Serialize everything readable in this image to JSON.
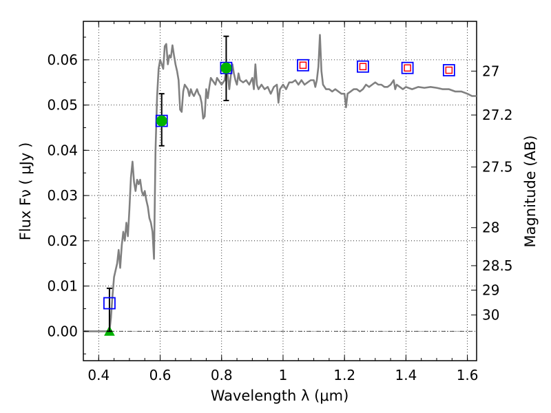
{
  "chart_data": {
    "type": "line",
    "xlabel": "Wavelength  λ (μm)",
    "ylabel": "Flux  Fν  ( μJy )",
    "y2label": "Magnitude (AB)",
    "xlim": [
      0.35,
      1.63
    ],
    "ylim": [
      -0.0065,
      0.0685
    ],
    "grid": true,
    "x_ticks": [
      0.4,
      0.6,
      0.8,
      1.0,
      1.2,
      1.4,
      1.6
    ],
    "x_tick_labels": [
      "0.4",
      "0.6",
      "0.8",
      "1",
      "1.2",
      "1.4",
      "1.6"
    ],
    "y_ticks": [
      0.0,
      0.01,
      0.02,
      0.03,
      0.04,
      0.05,
      0.06
    ],
    "y_tick_labels": [
      "0.00",
      "0.01",
      "0.02",
      "0.03",
      "0.04",
      "0.05",
      "0.06"
    ],
    "magnitude_ticks": [
      {
        "label": "27",
        "flux": 0.0575
      },
      {
        "label": "27.2",
        "flux": 0.0478
      },
      {
        "label": "27.5",
        "flux": 0.0363
      },
      {
        "label": "28",
        "flux": 0.0229
      },
      {
        "label": "28.5",
        "flux": 0.0145
      },
      {
        "label": "29",
        "flux": 0.0091
      },
      {
        "label": "30",
        "flux": 0.0036
      }
    ],
    "series": [
      {
        "name": "SED model",
        "color": "#808080",
        "points": [
          [
            0.35,
            0.0
          ],
          [
            0.43,
            0.0
          ],
          [
            0.435,
            0.0
          ],
          [
            0.44,
            0.003
          ],
          [
            0.445,
            0.008
          ],
          [
            0.45,
            0.012
          ],
          [
            0.46,
            0.015
          ],
          [
            0.465,
            0.018
          ],
          [
            0.47,
            0.014
          ],
          [
            0.475,
            0.019
          ],
          [
            0.48,
            0.022
          ],
          [
            0.485,
            0.02
          ],
          [
            0.49,
            0.024
          ],
          [
            0.495,
            0.021
          ],
          [
            0.5,
            0.027
          ],
          [
            0.505,
            0.034
          ],
          [
            0.51,
            0.0375
          ],
          [
            0.515,
            0.033
          ],
          [
            0.52,
            0.031
          ],
          [
            0.525,
            0.0335
          ],
          [
            0.53,
            0.0325
          ],
          [
            0.535,
            0.0335
          ],
          [
            0.54,
            0.031
          ],
          [
            0.545,
            0.03
          ],
          [
            0.55,
            0.031
          ],
          [
            0.555,
            0.029
          ],
          [
            0.56,
            0.0275
          ],
          [
            0.565,
            0.025
          ],
          [
            0.57,
            0.024
          ],
          [
            0.575,
            0.022
          ],
          [
            0.58,
            0.016
          ],
          [
            0.585,
            0.04
          ],
          [
            0.59,
            0.052
          ],
          [
            0.595,
            0.058
          ],
          [
            0.6,
            0.06
          ],
          [
            0.605,
            0.059
          ],
          [
            0.61,
            0.058
          ],
          [
            0.615,
            0.063
          ],
          [
            0.62,
            0.0635
          ],
          [
            0.625,
            0.059
          ],
          [
            0.63,
            0.061
          ],
          [
            0.635,
            0.0605
          ],
          [
            0.64,
            0.0632
          ],
          [
            0.645,
            0.061
          ],
          [
            0.65,
            0.059
          ],
          [
            0.655,
            0.0575
          ],
          [
            0.66,
            0.0555
          ],
          [
            0.665,
            0.049
          ],
          [
            0.67,
            0.0485
          ],
          [
            0.675,
            0.053
          ],
          [
            0.68,
            0.0545
          ],
          [
            0.69,
            0.0535
          ],
          [
            0.695,
            0.052
          ],
          [
            0.7,
            0.0535
          ],
          [
            0.705,
            0.0525
          ],
          [
            0.71,
            0.052
          ],
          [
            0.72,
            0.0535
          ],
          [
            0.725,
            0.0525
          ],
          [
            0.73,
            0.052
          ],
          [
            0.735,
            0.0505
          ],
          [
            0.74,
            0.047
          ],
          [
            0.745,
            0.0475
          ],
          [
            0.75,
            0.0535
          ],
          [
            0.755,
            0.0515
          ],
          [
            0.76,
            0.054
          ],
          [
            0.765,
            0.056
          ],
          [
            0.775,
            0.055
          ],
          [
            0.78,
            0.0545
          ],
          [
            0.785,
            0.056
          ],
          [
            0.79,
            0.0555
          ],
          [
            0.8,
            0.0545
          ],
          [
            0.81,
            0.0555
          ],
          [
            0.815,
            0.058
          ],
          [
            0.82,
            0.0565
          ],
          [
            0.825,
            0.0535
          ],
          [
            0.83,
            0.0565
          ],
          [
            0.835,
            0.059
          ],
          [
            0.84,
            0.057
          ],
          [
            0.845,
            0.0555
          ],
          [
            0.85,
            0.0545
          ],
          [
            0.855,
            0.057
          ],
          [
            0.86,
            0.0555
          ],
          [
            0.87,
            0.055
          ],
          [
            0.88,
            0.0555
          ],
          [
            0.89,
            0.0545
          ],
          [
            0.9,
            0.056
          ],
          [
            0.905,
            0.0535
          ],
          [
            0.91,
            0.059
          ],
          [
            0.915,
            0.0545
          ],
          [
            0.92,
            0.0535
          ],
          [
            0.93,
            0.0545
          ],
          [
            0.94,
            0.0535
          ],
          [
            0.95,
            0.054
          ],
          [
            0.96,
            0.0525
          ],
          [
            0.97,
            0.054
          ],
          [
            0.98,
            0.0545
          ],
          [
            0.985,
            0.0505
          ],
          [
            0.99,
            0.0535
          ],
          [
            1.0,
            0.0545
          ],
          [
            1.01,
            0.0535
          ],
          [
            1.02,
            0.055
          ],
          [
            1.03,
            0.055
          ],
          [
            1.04,
            0.0555
          ],
          [
            1.05,
            0.0545
          ],
          [
            1.06,
            0.0555
          ],
          [
            1.07,
            0.0545
          ],
          [
            1.08,
            0.055
          ],
          [
            1.09,
            0.0555
          ],
          [
            1.1,
            0.0555
          ],
          [
            1.105,
            0.054
          ],
          [
            1.11,
            0.0555
          ],
          [
            1.115,
            0.0585
          ],
          [
            1.12,
            0.0655
          ],
          [
            1.125,
            0.0575
          ],
          [
            1.13,
            0.0545
          ],
          [
            1.14,
            0.0535
          ],
          [
            1.15,
            0.0535
          ],
          [
            1.16,
            0.053
          ],
          [
            1.17,
            0.0535
          ],
          [
            1.18,
            0.053
          ],
          [
            1.19,
            0.0525
          ],
          [
            1.2,
            0.0525
          ],
          [
            1.205,
            0.0495
          ],
          [
            1.21,
            0.0525
          ],
          [
            1.22,
            0.053
          ],
          [
            1.23,
            0.0535
          ],
          [
            1.24,
            0.0535
          ],
          [
            1.25,
            0.053
          ],
          [
            1.26,
            0.0535
          ],
          [
            1.27,
            0.0545
          ],
          [
            1.28,
            0.054
          ],
          [
            1.29,
            0.0545
          ],
          [
            1.3,
            0.055
          ],
          [
            1.31,
            0.0545
          ],
          [
            1.32,
            0.0545
          ],
          [
            1.33,
            0.054
          ],
          [
            1.34,
            0.054
          ],
          [
            1.35,
            0.0545
          ],
          [
            1.36,
            0.0555
          ],
          [
            1.365,
            0.0535
          ],
          [
            1.37,
            0.0545
          ],
          [
            1.38,
            0.054
          ],
          [
            1.39,
            0.0535
          ],
          [
            1.4,
            0.054
          ],
          [
            1.42,
            0.0535
          ],
          [
            1.44,
            0.054
          ],
          [
            1.46,
            0.0538
          ],
          [
            1.48,
            0.054
          ],
          [
            1.5,
            0.0538
          ],
          [
            1.52,
            0.0535
          ],
          [
            1.54,
            0.0535
          ],
          [
            1.56,
            0.053
          ],
          [
            1.58,
            0.053
          ],
          [
            1.6,
            0.0525
          ],
          [
            1.615,
            0.052
          ],
          [
            1.63,
            0.052
          ]
        ]
      }
    ],
    "photometry": [
      {
        "x": 0.435,
        "y": 0.0062,
        "err": [
          0.0,
          0.0095
        ],
        "style": "open-square",
        "color": "#0000ff"
      },
      {
        "x": 0.605,
        "y": 0.0465,
        "err": [
          0.041,
          0.0525
        ],
        "style": "filled-circle",
        "color": "#00b300"
      },
      {
        "x": 0.815,
        "y": 0.0582,
        "err": [
          0.051,
          0.0652
        ],
        "style": "filled-circle",
        "color": "#00b300"
      },
      {
        "x": 1.065,
        "y": 0.0588,
        "err": null,
        "style": "square-inner-red",
        "color": "#0000ff"
      },
      {
        "x": 1.26,
        "y": 0.0585,
        "err": null,
        "style": "square-inner-red",
        "color": "#0000ff"
      },
      {
        "x": 1.405,
        "y": 0.0582,
        "err": null,
        "style": "square-inner-red",
        "color": "#0000ff"
      },
      {
        "x": 1.54,
        "y": 0.0577,
        "err": null,
        "style": "square-inner-red",
        "color": "#0000ff"
      }
    ],
    "upper_limit": {
      "x": 0.435,
      "y": 0.0,
      "style": "triangle",
      "color": "#00b300"
    }
  }
}
